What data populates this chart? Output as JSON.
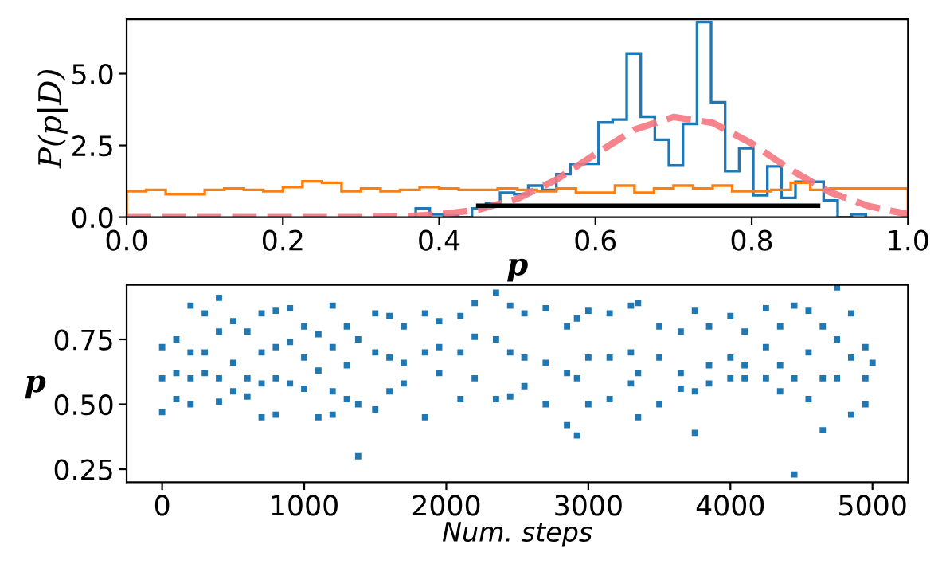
{
  "chart_data": [
    {
      "type": "histogram",
      "xlabel": "p",
      "ylabel": "P(p|D)",
      "xlim": [
        0.0,
        1.0
      ],
      "ylim": [
        0,
        6.9
      ],
      "xticks": [
        {
          "value": 0,
          "label": "0.0"
        },
        0.2,
        0.4,
        0.6,
        0.8,
        {
          "value": 1,
          "label": "1.0"
        }
      ],
      "yticks": [
        {
          "value": 0,
          "label": "0.0"
        },
        2.5,
        {
          "value": 5,
          "label": "5.0"
        }
      ],
      "grid": false,
      "series": [
        {
          "type": "histogram",
          "color": "#1f77b4",
          "bins": [
            0.37,
            0.388,
            0.406,
            0.424,
            0.442,
            0.46,
            0.478,
            0.496,
            0.514,
            0.532,
            0.55,
            0.568,
            0.586,
            0.604,
            0.622,
            0.64,
            0.658,
            0.676,
            0.694,
            0.712,
            0.73,
            0.748,
            0.766,
            0.784,
            0.802,
            0.82,
            0.838,
            0.856,
            0.874,
            0.892,
            0.91,
            0.928,
            0.946
          ],
          "values": [
            0.3,
            0.1,
            0.05,
            0.0,
            0.3,
            0.5,
            0.85,
            0.8,
            1.1,
            0.95,
            1.5,
            1.85,
            1.86,
            3.3,
            3.4,
            5.7,
            3.5,
            2.7,
            1.8,
            3.25,
            6.8,
            4.0,
            1.6,
            2.4,
            0.76,
            1.77,
            0.67,
            1.23,
            1.23,
            0.58,
            0.0,
            0.1
          ]
        },
        {
          "type": "histogram",
          "color": "#ff7f0e",
          "bins": [
            0.0,
            0.025,
            0.05,
            0.075,
            0.1,
            0.125,
            0.15,
            0.175,
            0.2,
            0.225,
            0.25,
            0.275,
            0.3,
            0.325,
            0.35,
            0.375,
            0.4,
            0.425,
            0.45,
            0.475,
            0.5,
            0.525,
            0.55,
            0.575,
            0.6,
            0.625,
            0.65,
            0.675,
            0.7,
            0.725,
            0.75,
            0.775,
            0.8,
            0.825,
            0.85,
            0.875,
            0.9,
            1.0
          ],
          "values": [
            0.9,
            0.95,
            0.8,
            0.8,
            0.95,
            1.0,
            0.95,
            0.9,
            1.05,
            1.25,
            1.2,
            0.9,
            1.0,
            0.9,
            0.95,
            1.05,
            1.0,
            0.95,
            0.95,
            1.0,
            0.95,
            0.9,
            1.0,
            0.85,
            0.85,
            1.1,
            0.85,
            1.0,
            1.1,
            1.0,
            1.1,
            0.9,
            0.9,
            0.95,
            1.2,
            0.95,
            1.0
          ]
        },
        {
          "type": "line",
          "color": "#f4777f",
          "line_style": "dashed",
          "x": [
            0.0,
            0.3,
            0.35,
            0.4,
            0.45,
            0.5,
            0.55,
            0.6,
            0.65,
            0.7,
            0.75,
            0.8,
            0.85,
            0.9,
            0.95,
            1.0
          ],
          "values": [
            0.0,
            0.0,
            0.02,
            0.09,
            0.26,
            0.64,
            1.31,
            2.2,
            3.05,
            3.49,
            3.29,
            2.57,
            1.65,
            0.87,
            0.38,
            0.1
          ]
        },
        {
          "type": "line",
          "color": "#000000",
          "line_style": "solid",
          "x": [
            0.45,
            0.885
          ],
          "values": [
            0.4,
            0.4
          ]
        }
      ]
    },
    {
      "type": "scatter",
      "xlabel": "Num. steps",
      "ylabel": "p",
      "xlim": [
        -250,
        5250
      ],
      "ylim": [
        0.2,
        0.96
      ],
      "xticks": [
        0,
        1000,
        2000,
        3000,
        4000,
        5000
      ],
      "yticks": [
        0.25,
        {
          "value": 0.5,
          "label": "0.50"
        },
        0.75
      ],
      "grid": false,
      "marker": "square",
      "series": [
        {
          "color": "#1f77b4",
          "x": [
            0,
            0,
            0,
            100,
            100,
            100,
            200,
            200,
            200,
            200,
            300,
            300,
            300,
            400,
            400,
            400,
            400,
            500,
            500,
            500,
            600,
            600,
            600,
            700,
            700,
            700,
            700,
            800,
            800,
            800,
            800,
            900,
            900,
            900,
            1000,
            1000,
            1000,
            1100,
            1100,
            1100,
            1200,
            1200,
            1200,
            1200,
            1300,
            1300,
            1300,
            1380,
            1380,
            1380,
            1500,
            1500,
            1500,
            1600,
            1600,
            1600,
            1700,
            1700,
            1700,
            1850,
            1850,
            1850,
            1950,
            1950,
            1950,
            2100,
            2100,
            2100,
            2200,
            2200,
            2200,
            2350,
            2350,
            2350,
            2450,
            2450,
            2450,
            2550,
            2550,
            2550,
            2700,
            2700,
            2700,
            2850,
            2850,
            2850,
            2920,
            2920,
            2920,
            3000,
            3000,
            3000,
            3150,
            3150,
            3150,
            3300,
            3300,
            3300,
            3350,
            3350,
            3350,
            3500,
            3500,
            3500,
            3650,
            3650,
            3650,
            3750,
            3750,
            3750,
            3850,
            3850,
            3850,
            4000,
            4000,
            4000,
            4100,
            4100,
            4100,
            4250,
            4250,
            4250,
            4350,
            4350,
            4350,
            4450,
            4450,
            4450,
            4550,
            4550,
            4550,
            4650,
            4650,
            4650,
            4750,
            4750,
            4750,
            4850,
            4850,
            4850,
            4950,
            4950,
            4950,
            5000
          ],
          "values": [
            0.72,
            0.6,
            0.47,
            0.75,
            0.62,
            0.52,
            0.88,
            0.7,
            0.6,
            0.5,
            0.85,
            0.7,
            0.62,
            0.91,
            0.78,
            0.6,
            0.51,
            0.82,
            0.66,
            0.55,
            0.78,
            0.6,
            0.53,
            0.85,
            0.7,
            0.58,
            0.45,
            0.86,
            0.72,
            0.6,
            0.46,
            0.87,
            0.74,
            0.58,
            0.8,
            0.68,
            0.56,
            0.77,
            0.63,
            0.45,
            0.88,
            0.72,
            0.55,
            0.46,
            0.8,
            0.65,
            0.52,
            0.75,
            0.5,
            0.3,
            0.85,
            0.7,
            0.48,
            0.84,
            0.68,
            0.55,
            0.8,
            0.66,
            0.58,
            0.85,
            0.7,
            0.45,
            0.82,
            0.72,
            0.62,
            0.84,
            0.7,
            0.52,
            0.89,
            0.76,
            0.6,
            0.93,
            0.75,
            0.52,
            0.88,
            0.7,
            0.53,
            0.85,
            0.68,
            0.57,
            0.87,
            0.66,
            0.5,
            0.8,
            0.62,
            0.42,
            0.83,
            0.6,
            0.38,
            0.86,
            0.68,
            0.5,
            0.85,
            0.68,
            0.52,
            0.88,
            0.7,
            0.58,
            0.89,
            0.62,
            0.45,
            0.8,
            0.68,
            0.5,
            0.78,
            0.62,
            0.56,
            0.86,
            0.55,
            0.39,
            0.8,
            0.65,
            0.58,
            0.84,
            0.68,
            0.6,
            0.78,
            0.65,
            0.6,
            0.87,
            0.72,
            0.6,
            0.8,
            0.65,
            0.55,
            0.88,
            0.6,
            0.23,
            0.86,
            0.7,
            0.52,
            0.8,
            0.6,
            0.4,
            0.95,
            0.75,
            0.6,
            0.85,
            0.68,
            0.46,
            0.72,
            0.6,
            0.5,
            0.66
          ]
        }
      ]
    }
  ]
}
